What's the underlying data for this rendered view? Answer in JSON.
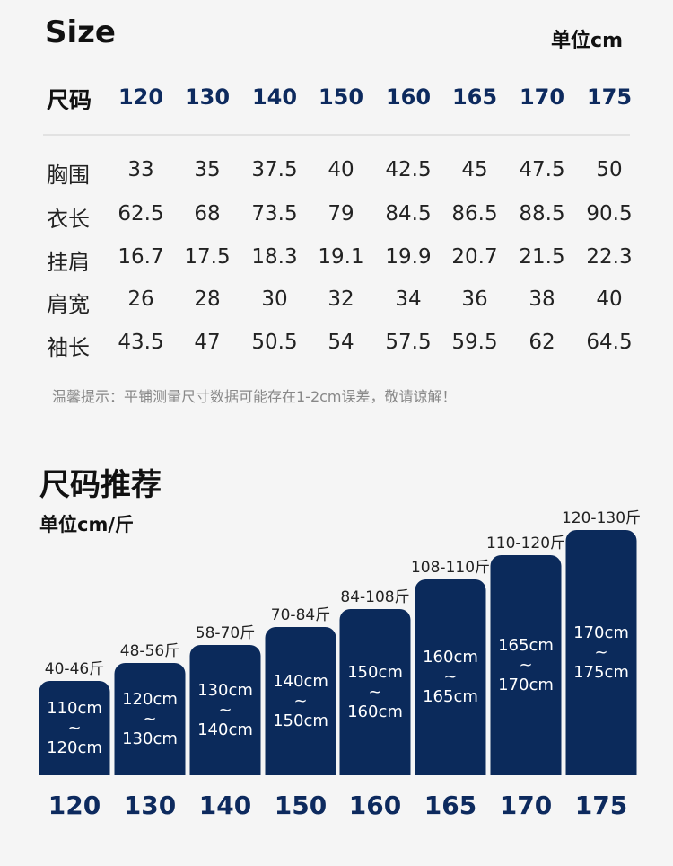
{
  "size_title": "Size",
  "unit_top": "单位cm",
  "header_label": "尺码",
  "sizes": [
    "120",
    "130",
    "140",
    "150",
    "160",
    "165",
    "170",
    "175"
  ],
  "rows": [
    {
      "label": "胸围",
      "values": [
        "33",
        "35",
        "37.5",
        "40",
        "42.5",
        "45",
        "47.5",
        "50"
      ]
    },
    {
      "label": "衣长",
      "values": [
        "62.5",
        "68",
        "73.5",
        "79",
        "84.5",
        "86.5",
        "88.5",
        "90.5"
      ]
    },
    {
      "label": "挂肩",
      "values": [
        "16.7",
        "17.5",
        "18.3",
        "19.1",
        "19.9",
        "20.7",
        "21.5",
        "22.3"
      ]
    },
    {
      "label": "肩宽",
      "values": [
        "26",
        "28",
        "30",
        "32",
        "34",
        "36",
        "38",
        "40"
      ]
    },
    {
      "label": "袖长",
      "values": [
        "43.5",
        "47",
        "50.5",
        "54",
        "57.5",
        "59.5",
        "62",
        "64.5"
      ]
    }
  ],
  "note": "温馨提示：平铺测量尺寸数据可能存在1-2cm误差，敬请谅解！",
  "recommend_title": "尺码推荐",
  "recommend_unit": "单位cm/斤",
  "recommend": [
    {
      "weight": "40-46斤",
      "height_from": "110cm",
      "tilde": "~",
      "height_to": "120cm",
      "size": "120"
    },
    {
      "weight": "48-56斤",
      "height_from": "120cm",
      "tilde": "~",
      "height_to": "130cm",
      "size": "130"
    },
    {
      "weight": "58-70斤",
      "height_from": "130cm",
      "tilde": "~",
      "height_to": "140cm",
      "size": "140"
    },
    {
      "weight": "70-84斤",
      "height_from": "140cm",
      "tilde": "~",
      "height_to": "150cm",
      "size": "150"
    },
    {
      "weight": "84-108斤",
      "height_from": "150cm",
      "tilde": "~",
      "height_to": "160cm",
      "size": "160"
    },
    {
      "weight": "108-110斤",
      "height_from": "160cm",
      "tilde": "~",
      "height_to": "165cm",
      "size": "165"
    },
    {
      "weight": "110-120斤",
      "height_from": "165cm",
      "tilde": "~",
      "height_to": "170cm",
      "size": "170"
    },
    {
      "weight": "120-130斤",
      "height_from": "170cm",
      "tilde": "~",
      "height_to": "175cm",
      "size": "175"
    }
  ],
  "colors": {
    "accent": "#0d2a5e",
    "bar": "#0b2a5b",
    "background": "#f5f5f5"
  }
}
